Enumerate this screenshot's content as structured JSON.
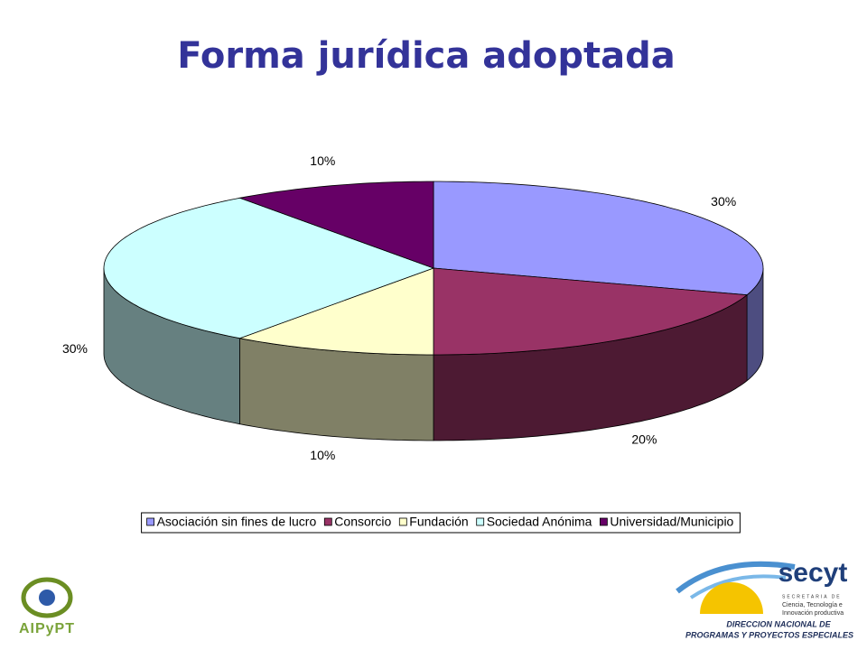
{
  "chart_data": {
    "type": "pie",
    "title": "Forma jurídica adoptada",
    "categories": [
      "Asociación sin fines de lucro",
      "Consorcio",
      "Fundación",
      "Sociedad Anónima",
      "Universidad/Municipio"
    ],
    "values": [
      30,
      20,
      10,
      30,
      10
    ],
    "value_labels": [
      "30%",
      "20%",
      "10%",
      "30%",
      "10%"
    ],
    "colors": [
      "#9999ff",
      "#993366",
      "#ffffcc",
      "#ccffff",
      "#660066"
    ],
    "legend": "bottom"
  },
  "logos": {
    "left": "AIPyPT",
    "right_name": "secyt",
    "right_secretaria": "SECRETARIA DE",
    "right_sub1": "Ciencia, Tecnología e",
    "right_sub2": "Innovación productiva",
    "right_dir1": "DIRECCION NACIONAL DE",
    "right_dir2": "PROGRAMAS Y PROYECTOS ESPECIALES"
  }
}
